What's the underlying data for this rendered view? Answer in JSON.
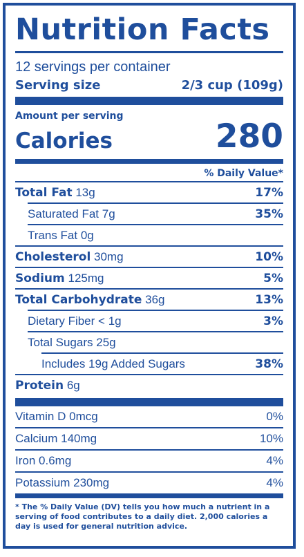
{
  "title": "Nutrition Facts",
  "servings_per_container": "12 servings per container",
  "serving_size_label": "Serving size",
  "serving_size_value": "2/3 cup (109g)",
  "amount_per_serving": "Amount per serving",
  "calories_label": "Calories",
  "calories_value": "280",
  "dv_header": "% Daily Value*",
  "nutrients": [
    {
      "name": "Total Fat",
      "amount": "13g",
      "dv": "17%"
    },
    {
      "name": "Saturated Fat",
      "amount": "7g",
      "dv": "35%"
    },
    {
      "name": "Trans Fat",
      "amount": "0g",
      "dv": ""
    },
    {
      "name": "Cholesterol",
      "amount": "30mg",
      "dv": "10%"
    },
    {
      "name": "Sodium",
      "amount": "125mg",
      "dv": "5%"
    },
    {
      "name": "Total Carbohydrate",
      "amount": "36g",
      "dv": "13%"
    },
    {
      "name": "Dietary Fiber",
      "amount": "< 1g",
      "dv": "3%"
    },
    {
      "name": "Total Sugars",
      "amount": "25g",
      "dv": ""
    },
    {
      "name": "Includes 19g Added Sugars",
      "amount": "",
      "dv": "38%"
    },
    {
      "name": "Protein",
      "amount": "6g",
      "dv": ""
    }
  ],
  "vitamins": [
    {
      "name": "Vitamin D",
      "amount": "0mcg",
      "dv": "0%"
    },
    {
      "name": "Calcium",
      "amount": "140mg",
      "dv": "10%"
    },
    {
      "name": "Iron",
      "amount": "0.6mg",
      "dv": "4%"
    },
    {
      "name": "Potassium",
      "amount": "230mg",
      "dv": "4%"
    }
  ],
  "footnote": "* The % Daily Value (DV) tells you how much a nutrient in a serving of food contributes to a daily diet. 2,000 calories a day is used for general nutrition advice."
}
